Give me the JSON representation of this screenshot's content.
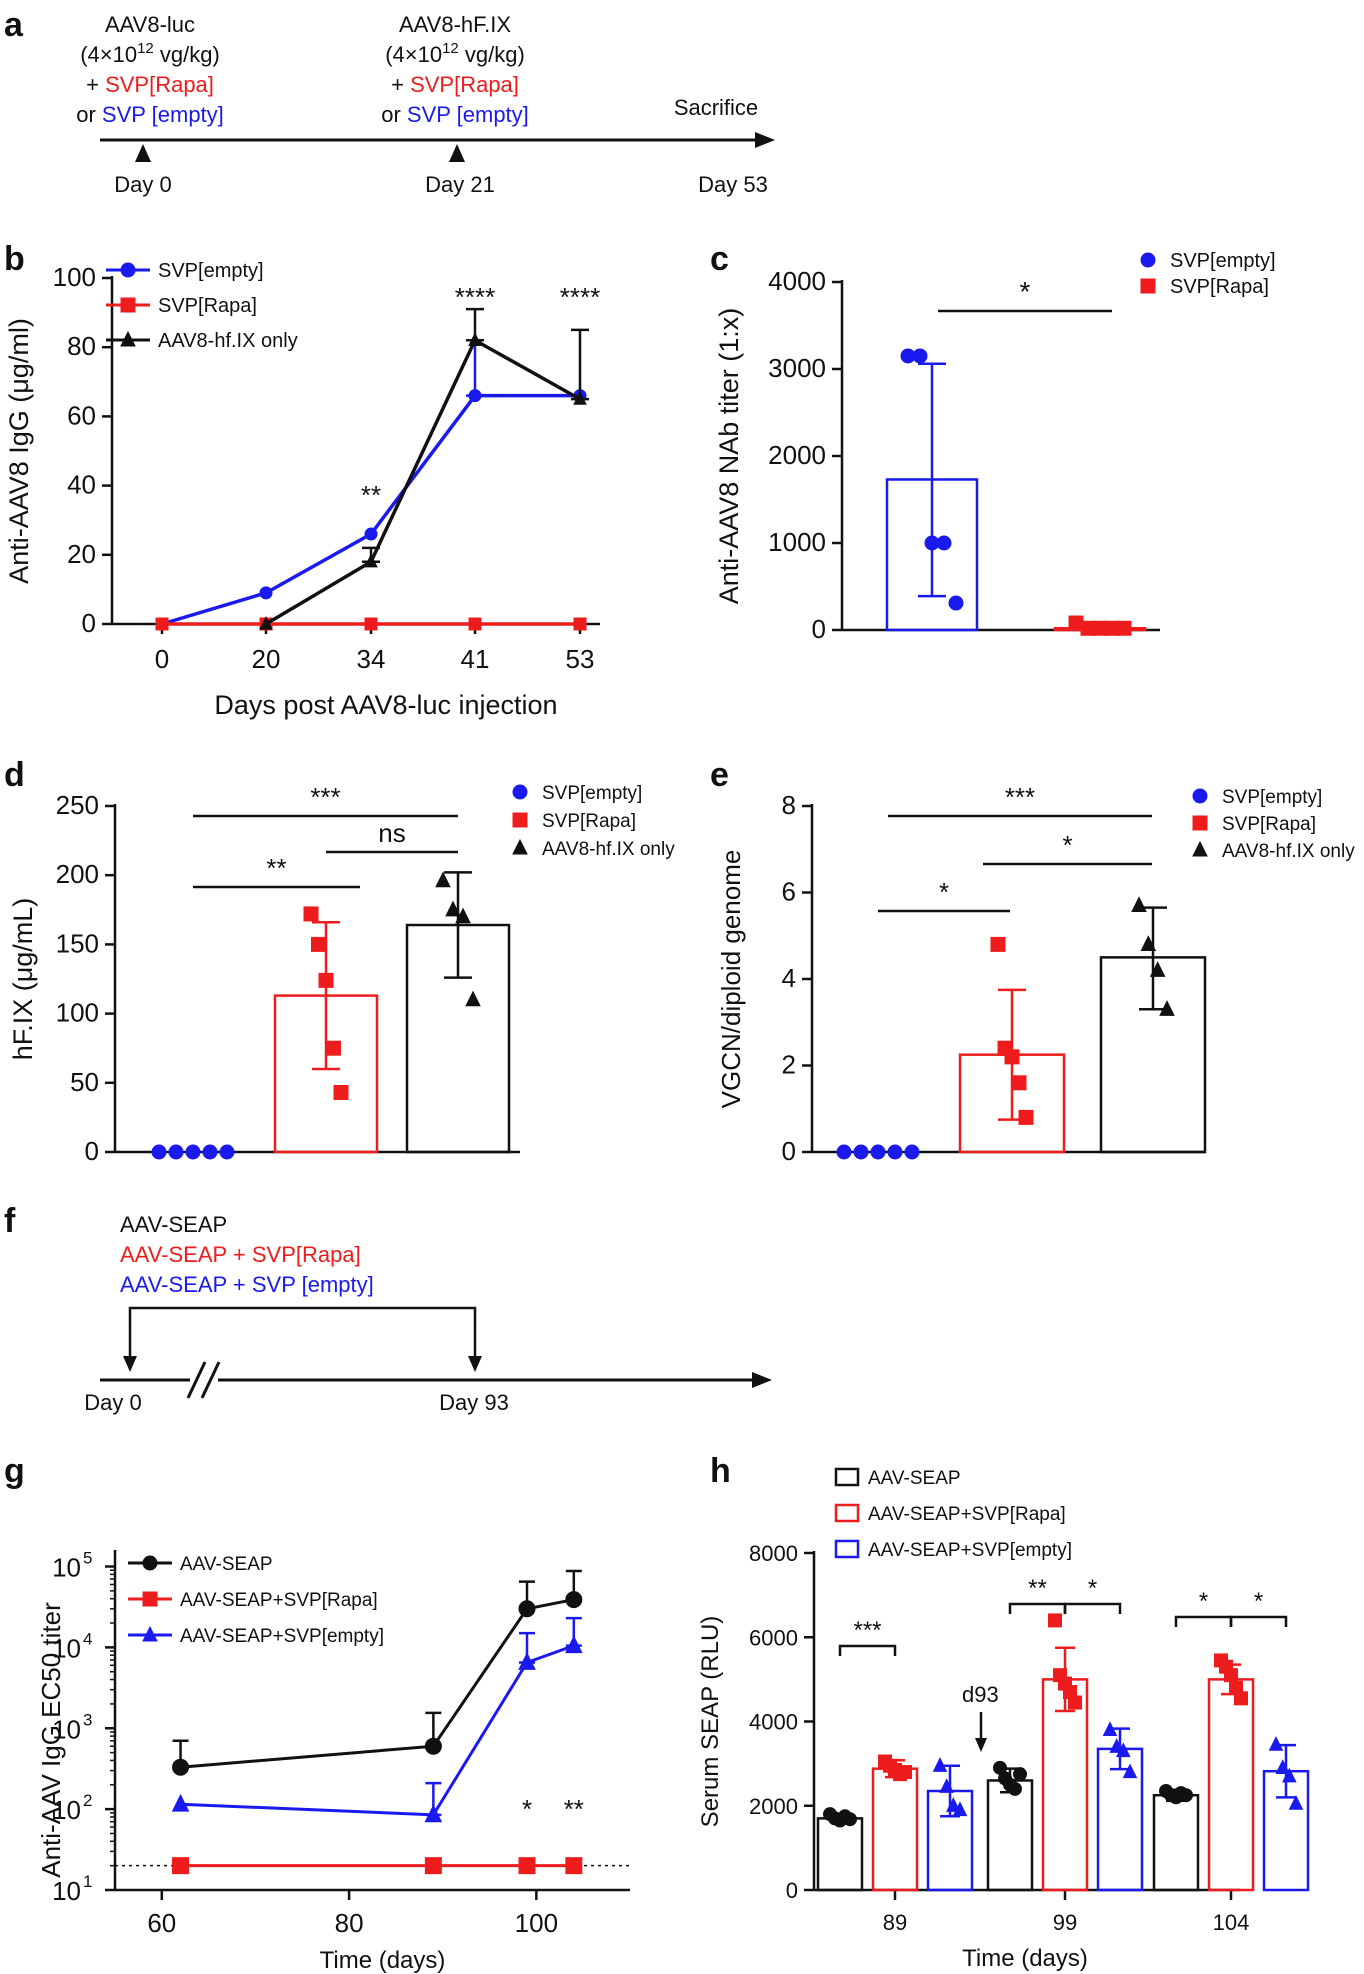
{
  "colors": {
    "blue": "#1a1aee",
    "red": "#ee1c1c",
    "black": "#111111"
  },
  "panels": {
    "a": {
      "letter": "a",
      "dose1": {
        "line1": "AAV8-luc",
        "line2_pre": "(4×10",
        "line2_sup": "12",
        "line2_post": " vg/kg)",
        "line3_pre": "+ ",
        "line3_col": "SVP[Rapa]",
        "line4_pre": "or ",
        "line4_col": "SVP [empty]"
      },
      "dose2": {
        "line1": "AAV8-hF.IX",
        "line2_pre": "(4×10",
        "line2_sup": "12",
        "line2_post": " vg/kg)",
        "line3_pre": "+ ",
        "line3_col": "SVP[Rapa]",
        "line4_pre": "or ",
        "line4_col": "SVP [empty]"
      },
      "sacrifice": "Sacrifice",
      "day0": "Day 0",
      "day21": "Day 21",
      "day53": "Day 53"
    },
    "b": {
      "letter": "b"
    },
    "c": {
      "letter": "c"
    },
    "d": {
      "letter": "d"
    },
    "e": {
      "letter": "e"
    },
    "f": {
      "letter": "f",
      "line1": "AAV-SEAP",
      "line2": "AAV-SEAP + SVP[Rapa]",
      "line3": "AAV-SEAP + SVP [empty]",
      "day0": "Day 0",
      "day93": "Day 93"
    },
    "g": {
      "letter": "g"
    },
    "h": {
      "letter": "h",
      "annotation": "d93"
    }
  },
  "chart_data": [
    {
      "panel": "b",
      "type": "line",
      "xlabel": "Days post AAV8-luc injection",
      "ylabel": "Anti-AAV8 IgG (μg/ml)",
      "x": [
        0,
        20,
        34,
        41,
        53
      ],
      "ylim": [
        0,
        100
      ],
      "yticks": [
        0,
        20,
        40,
        60,
        80,
        100
      ],
      "series": [
        {
          "name": "SVP[empty]",
          "color": "blue",
          "marker": "circle",
          "x": [
            0,
            20,
            34,
            41,
            53
          ],
          "values": [
            0,
            9,
            26,
            66,
            66
          ],
          "err": [
            0,
            0,
            0,
            16,
            0
          ]
        },
        {
          "name": "SVP[Rapa]",
          "color": "red",
          "marker": "square",
          "x": [
            0,
            20,
            34,
            41,
            53
          ],
          "values": [
            0,
            0,
            0,
            0,
            0
          ],
          "err": [
            0,
            0,
            0,
            0,
            0
          ]
        },
        {
          "name": "AAV8-hf.IX only",
          "color": "black",
          "marker": "triangle",
          "x": [
            20,
            34,
            41,
            53
          ],
          "values": [
            0,
            18,
            82,
            65
          ],
          "err": [
            0,
            4,
            9,
            20
          ]
        }
      ],
      "annotations": [
        {
          "x": 34,
          "text": "**"
        },
        {
          "x": 41,
          "text": "****"
        },
        {
          "x": 53,
          "text": "****"
        }
      ]
    },
    {
      "panel": "c",
      "type": "bar",
      "ylabel": "Anti-AAV8 NAb titer (1:x)",
      "ylim": [
        0,
        4000
      ],
      "yticks": [
        0,
        1000,
        2000,
        3000,
        4000
      ],
      "groups": [
        {
          "name": "SVP[empty]",
          "color": "blue",
          "marker": "circle",
          "mean": 1730,
          "sd_low": 390,
          "sd_high": 3060,
          "points": [
            3150,
            3150,
            1000,
            1000,
            310
          ]
        },
        {
          "name": "SVP[Rapa]",
          "color": "red",
          "marker": "square",
          "mean": 20,
          "sd_low": 0,
          "sd_high": 20,
          "points": [
            80,
            20,
            20,
            20,
            20
          ]
        }
      ],
      "comparisons": [
        {
          "from": 0,
          "to": 1,
          "label": "*"
        }
      ]
    },
    {
      "panel": "d",
      "type": "bar",
      "ylabel": "hF.IX (μg/mL)",
      "ylim": [
        0,
        250
      ],
      "yticks": [
        0,
        50,
        100,
        150,
        200,
        250
      ],
      "groups": [
        {
          "name": "SVP[empty]",
          "color": "blue",
          "marker": "circle",
          "mean": 0,
          "sd_low": 0,
          "sd_high": 0,
          "points": [
            0,
            0,
            0,
            0,
            0
          ]
        },
        {
          "name": "SVP[Rapa]",
          "color": "red",
          "marker": "square",
          "mean": 113,
          "sd_low": 60,
          "sd_high": 166,
          "points": [
            172,
            150,
            124,
            75,
            43
          ]
        },
        {
          "name": "AAV8-hf.IX only",
          "color": "black",
          "marker": "triangle",
          "mean": 164,
          "sd_low": 126,
          "sd_high": 202,
          "points": [
            196,
            175,
            170,
            110
          ]
        }
      ],
      "comparisons": [
        {
          "from": 0,
          "to": 2,
          "label": "***"
        },
        {
          "from": 1,
          "to": 2,
          "label": "ns"
        },
        {
          "from": 0,
          "to": 1,
          "label": "**"
        }
      ]
    },
    {
      "panel": "e",
      "type": "bar",
      "ylabel": "VGCN/diploid genome",
      "ylim": [
        0,
        8
      ],
      "yticks": [
        0,
        2,
        4,
        6,
        8
      ],
      "groups": [
        {
          "name": "SVP[empty]",
          "color": "blue",
          "marker": "circle",
          "mean": 0.02,
          "sd_low": 0,
          "sd_high": 0.02,
          "points": [
            0,
            0,
            0,
            0,
            0
          ]
        },
        {
          "name": "SVP[Rapa]",
          "color": "red",
          "marker": "square",
          "mean": 2.25,
          "sd_low": 0.75,
          "sd_high": 3.75,
          "points": [
            4.8,
            2.4,
            2.2,
            1.6,
            0.8
          ]
        },
        {
          "name": "AAV8-hf.IX only",
          "color": "black",
          "marker": "triangle",
          "mean": 4.5,
          "sd_low": 3.3,
          "sd_high": 5.65,
          "points": [
            5.7,
            4.8,
            4.2,
            3.3
          ]
        }
      ],
      "comparisons": [
        {
          "from": 0,
          "to": 2,
          "label": "***"
        },
        {
          "from": 1,
          "to": 2,
          "label": "*"
        },
        {
          "from": 0,
          "to": 1,
          "label": "*"
        }
      ]
    },
    {
      "panel": "g",
      "type": "line",
      "xlabel": "Time (days)",
      "ylabel": "Anti-AAV IgG EC50 titer",
      "xlim": [
        55,
        110
      ],
      "xticks": [
        60,
        80,
        100
      ],
      "yscale": "log",
      "ylim": [
        10,
        160000
      ],
      "yticks": [
        {
          "base": "10",
          "exp": "1"
        },
        {
          "base": "10",
          "exp": "2"
        },
        {
          "base": "10",
          "exp": "3"
        },
        {
          "base": "10",
          "exp": "4"
        },
        {
          "base": "10",
          "exp": "5"
        }
      ],
      "detection_limit": 20,
      "series": [
        {
          "name": "AAV-SEAP",
          "color": "black",
          "marker": "circle",
          "x": [
            62,
            89,
            99,
            104
          ],
          "values": [
            330,
            600,
            30000,
            39000
          ],
          "err_high": [
            700,
            1550,
            65000,
            88000
          ]
        },
        {
          "name": "AAV-SEAP+SVP[Rapa]",
          "color": "red",
          "marker": "square",
          "x": [
            62,
            89,
            99,
            104
          ],
          "values": [
            20,
            20,
            20,
            20
          ],
          "err_high": [
            20,
            20,
            20,
            20
          ]
        },
        {
          "name": "AAV-SEAP+SVP[empty]",
          "color": "blue",
          "marker": "triangle",
          "x": [
            62,
            89,
            99,
            104
          ],
          "values": [
            115,
            85,
            6500,
            10500
          ],
          "err_high": [
            115,
            210,
            15000,
            23000
          ]
        }
      ],
      "annotations": [
        {
          "x": 99,
          "text": "*"
        },
        {
          "x": 104,
          "text": "**"
        }
      ]
    },
    {
      "panel": "h",
      "type": "bar",
      "xlabel": "Time (days)",
      "ylabel": "Serum SEAP (RLU)",
      "categories": [
        "89",
        "99",
        "104"
      ],
      "ylim": [
        0,
        8000
      ],
      "yticks": [
        0,
        2000,
        4000,
        6000,
        8000
      ],
      "series": [
        {
          "name": "AAV-SEAP",
          "color": "black",
          "means": [
            1700,
            2600,
            2250
          ],
          "err": [
            90,
            280,
            130
          ],
          "points": [
            [
              1800,
              1700,
              1650,
              1750,
              1680
            ],
            [
              2900,
              2650,
              2500,
              2400,
              2750
            ],
            [
              2350,
              2250,
              2200,
              2300,
              2250
            ]
          ]
        },
        {
          "name": "AAV-SEAP+SVP[Rapa]",
          "color": "red",
          "means": [
            2880,
            5000,
            5000
          ],
          "err": [
            200,
            750,
            350
          ],
          "points": [
            [
              3050,
              2950,
              2850,
              2750,
              2800
            ],
            [
              6400,
              5100,
              4900,
              4700,
              4450
            ],
            [
              5450,
              5300,
              5100,
              4800,
              4550
            ]
          ]
        },
        {
          "name": "AAV-SEAP+SVP[empty]",
          "color": "blue",
          "means": [
            2350,
            3350,
            2820
          ],
          "err": [
            600,
            480,
            620
          ],
          "points": [
            [
              2950,
              2450,
              2000,
              1900
            ],
            [
              3800,
              3400,
              3300,
              2800
            ],
            [
              3450,
              2900,
              2700,
              2050
            ]
          ]
        }
      ],
      "comparisons": [
        {
          "category": 0,
          "from": 0,
          "to": 1,
          "label": "***"
        },
        {
          "category": 1,
          "from": 0,
          "to": 1,
          "label": "**"
        },
        {
          "category": 1,
          "from": 1,
          "to": 2,
          "label": "*"
        },
        {
          "category": 2,
          "from": 0,
          "to": 1,
          "label": "*"
        },
        {
          "category": 2,
          "from": 1,
          "to": 2,
          "label": "*"
        }
      ]
    }
  ]
}
